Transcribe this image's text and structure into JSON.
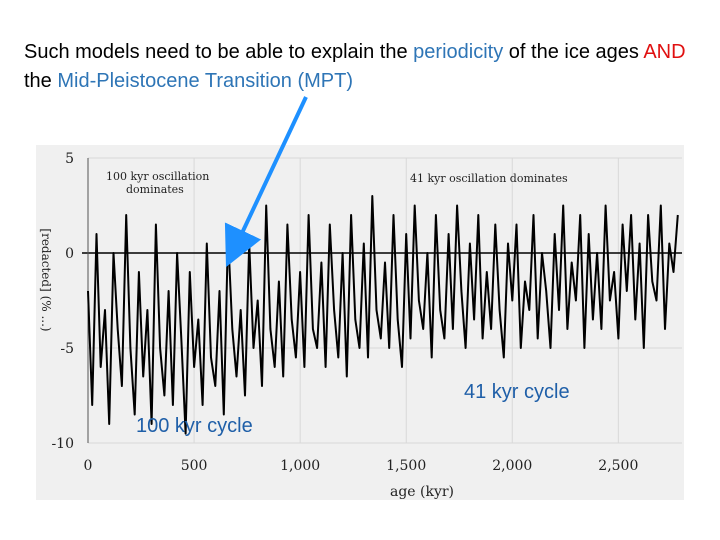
{
  "headline": {
    "part1": "Such models need to be able to explain the ",
    "periodicity": "periodicity",
    "part2": " of the ice ages ",
    "and_word": "AND",
    "part3": " the ",
    "mpt": "Mid-Pleistocene Transition (MPT)"
  },
  "colors": {
    "text": "#000000",
    "highlight_blue": "#2E75B6",
    "highlight_red": "#E01010",
    "arrow": "#1E90FF",
    "panel_bg": "#F0F0F0",
    "series": "#000000",
    "overlay_label": "#1F5FA8"
  },
  "chart_data": {
    "type": "line",
    "xlabel": "age (kyr)",
    "ylabel": "[redacted] (% ...)",
    "xlim": [
      0,
      2800
    ],
    "ylim": [
      -10,
      5
    ],
    "x_ticks": [
      0,
      500,
      1000,
      1500,
      2000,
      2500
    ],
    "x_tick_labels": [
      "0",
      "500",
      "1,000",
      "1,500",
      "2,000",
      "2,500"
    ],
    "y_ticks": [
      5,
      0,
      -5,
      -10
    ],
    "y_tick_labels": [
      "5",
      "0",
      "-5",
      "-10"
    ],
    "reference_line_y": 0,
    "grid": true,
    "annotations": [
      {
        "text": "100 kyr oscillation",
        "line2": "dominates"
      },
      {
        "text": "41 kyr oscillation dominates"
      }
    ],
    "overlay_labels": {
      "cycle_41": "41 kyr cycle",
      "cycle_100": "100 kyr cycle"
    },
    "arrow_target": {
      "x": 700,
      "y": 0
    },
    "series": [
      {
        "x": [
          0,
          20,
          40,
          60,
          80,
          100,
          120,
          140,
          160,
          180,
          200,
          220,
          240,
          260,
          280,
          300,
          320,
          340,
          360,
          380,
          400,
          420,
          440,
          460,
          480,
          500,
          520,
          540,
          560,
          580,
          600,
          620,
          640,
          660,
          680,
          700,
          720,
          740,
          760,
          780,
          800,
          820,
          840,
          860,
          880,
          900,
          920,
          940,
          960,
          980,
          1000,
          1020,
          1040,
          1060,
          1080,
          1100,
          1120,
          1140,
          1160,
          1180,
          1200,
          1220,
          1240,
          1260,
          1280,
          1300,
          1320,
          1340,
          1360,
          1380,
          1400,
          1420,
          1440,
          1460,
          1480,
          1500,
          1520,
          1540,
          1560,
          1580,
          1600,
          1620,
          1640,
          1660,
          1680,
          1700,
          1720,
          1740,
          1760,
          1780,
          1800,
          1820,
          1840,
          1860,
          1880,
          1900,
          1920,
          1940,
          1960,
          1980,
          2000,
          2020,
          2040,
          2060,
          2080,
          2100,
          2120,
          2140,
          2160,
          2180,
          2200,
          2220,
          2240,
          2260,
          2280,
          2300,
          2320,
          2340,
          2360,
          2380,
          2400,
          2420,
          2440,
          2460,
          2480,
          2500,
          2520,
          2540,
          2560,
          2580,
          2600,
          2620,
          2640,
          2660,
          2680,
          2700,
          2720,
          2740,
          2760,
          2780
        ],
        "y": [
          -2,
          -8,
          1,
          -6,
          -3,
          -9,
          0,
          -4,
          -7,
          2,
          -5,
          -8.5,
          -1,
          -6.5,
          -3,
          -9,
          1.5,
          -5,
          -7.5,
          -2,
          -8,
          0,
          -4.5,
          -9.5,
          -1,
          -6,
          -3.5,
          -8,
          0.5,
          -5.5,
          -7,
          -2,
          -8.5,
          1,
          -4,
          -6.5,
          -3,
          -7.5,
          0.5,
          -5,
          -2.5,
          -7,
          2.5,
          -4,
          -6,
          -1.5,
          -6.5,
          1.5,
          -3.5,
          -5.5,
          -1,
          -6,
          2,
          -4,
          -5,
          -0.5,
          -6,
          1.5,
          -3,
          -5.5,
          0,
          -6.5,
          2,
          -3.5,
          -5,
          0.5,
          -5.5,
          3,
          -3,
          -4.5,
          -0.5,
          -5,
          2,
          -3.5,
          -6,
          1,
          -4.5,
          2.5,
          -2.5,
          -4,
          0,
          -5.5,
          2,
          -3,
          -4.5,
          1,
          -4,
          2.5,
          -2,
          -5,
          0.5,
          -3.5,
          2,
          -4.5,
          -1,
          -4,
          1.5,
          -3,
          -5.5,
          0.5,
          -2.5,
          1.5,
          -5,
          -1.5,
          -3,
          2,
          -4.5,
          0,
          -2,
          -5,
          1,
          -3,
          2.5,
          -4,
          -0.5,
          -2.5,
          2,
          -5,
          1,
          -3.5,
          0,
          -4,
          2.5,
          -2.5,
          -1,
          -4.5,
          1.5,
          -2,
          2,
          -3.5,
          0.5,
          -5,
          2,
          -1.5,
          -2.5,
          2.5,
          -4,
          0.5,
          -1,
          2
        ]
      }
    ]
  }
}
